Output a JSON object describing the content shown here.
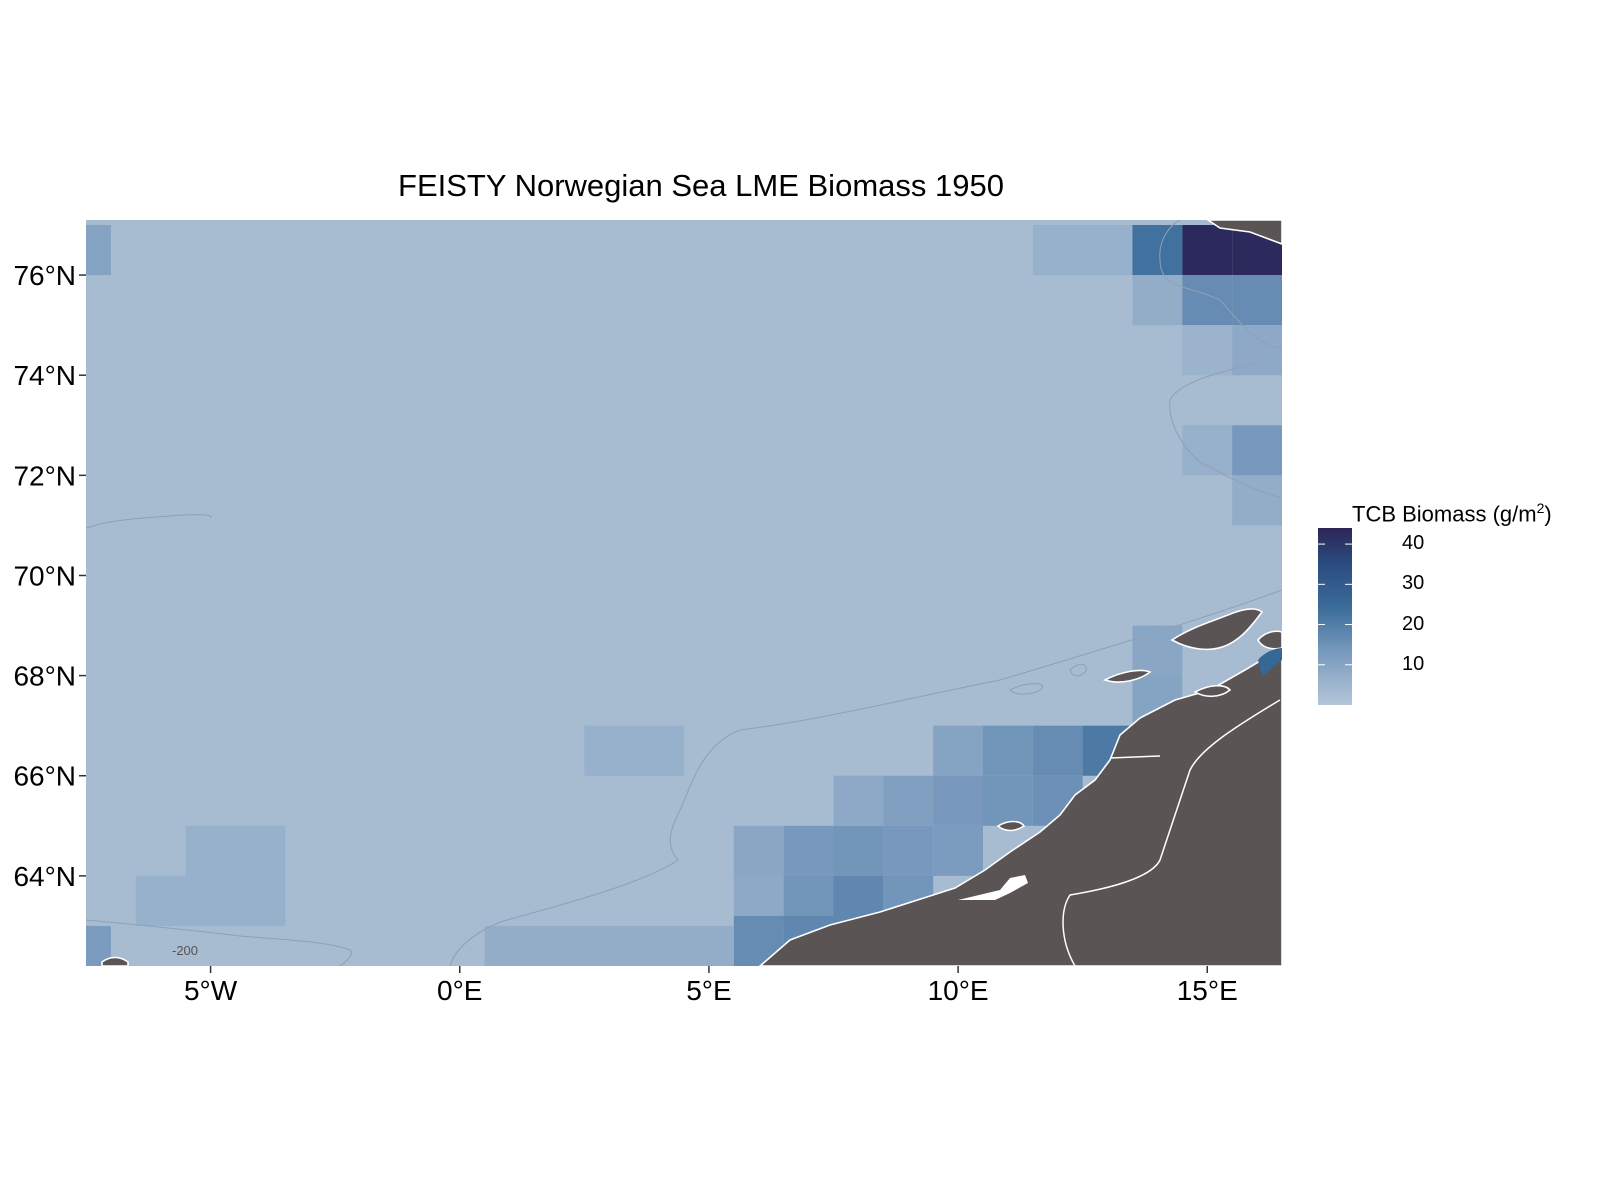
{
  "title": "FEISTY Norwegian Sea LME Biomass 1950",
  "legend": {
    "title_main": "TCB Biomass (g/m",
    "title_sup": "2",
    "title_end": ")",
    "ticks": [
      "40",
      "30",
      "20",
      "10"
    ],
    "tick_values": [
      40,
      30,
      20,
      10
    ],
    "range": [
      0,
      44
    ],
    "colors": [
      "#a9bdd3",
      "#7899bd",
      "#356897",
      "#2d3f77",
      "#2c2556"
    ]
  },
  "y_axis": {
    "ticks": [
      "76°N",
      "74°N",
      "72°N",
      "70°N",
      "68°N",
      "66°N",
      "64°N"
    ],
    "tick_values": [
      76,
      74,
      72,
      70,
      68,
      66,
      64
    ],
    "range": [
      62.2,
      77.1
    ]
  },
  "x_axis": {
    "ticks": [
      "5°W",
      "0°E",
      "5°E",
      "10°E",
      "15°E"
    ],
    "tick_values": [
      -5,
      0,
      5,
      10,
      15
    ],
    "range": [
      -7.5,
      16.5
    ]
  },
  "contour_label": "-200",
  "chart_data": {
    "type": "heatmap",
    "title": "FEISTY Norwegian Sea LME Biomass 1950",
    "xlabel": "",
    "ylabel": "",
    "value_label": "TCB Biomass (g/m2)",
    "background_value": 2,
    "cells": [
      {
        "lon": -7.5,
        "lat": 76.5,
        "value": 8
      },
      {
        "lon": 12,
        "lat": 76.5,
        "value": 4
      },
      {
        "lon": 13,
        "lat": 76.5,
        "value": 4
      },
      {
        "lon": 14,
        "lat": 76.5,
        "value": 20
      },
      {
        "lon": 15,
        "lat": 76.5,
        "value": 42
      },
      {
        "lon": 16,
        "lat": 76.5,
        "value": 42
      },
      {
        "lon": 14,
        "lat": 75.5,
        "value": 5
      },
      {
        "lon": 15,
        "lat": 75.5,
        "value": 14
      },
      {
        "lon": 16,
        "lat": 75.5,
        "value": 14
      },
      {
        "lon": 15,
        "lat": 74.5,
        "value": 3
      },
      {
        "lon": 16,
        "lat": 74.5,
        "value": 6
      },
      {
        "lon": 15,
        "lat": 72.5,
        "value": 4
      },
      {
        "lon": 16,
        "lat": 72.5,
        "value": 11
      },
      {
        "lon": 16,
        "lat": 71.5,
        "value": 5
      },
      {
        "lon": 14,
        "lat": 68.5,
        "value": 7
      },
      {
        "lon": 14,
        "lat": 67.5,
        "value": 8
      },
      {
        "lon": 10,
        "lat": 66.5,
        "value": 8
      },
      {
        "lon": 11,
        "lat": 66.5,
        "value": 12
      },
      {
        "lon": 12,
        "lat": 66.5,
        "value": 14
      },
      {
        "lon": 13,
        "lat": 66.5,
        "value": 18
      },
      {
        "lon": 3,
        "lat": 66.5,
        "value": 4
      },
      {
        "lon": 4,
        "lat": 66.5,
        "value": 4
      },
      {
        "lon": 8,
        "lat": 65.5,
        "value": 6
      },
      {
        "lon": 9,
        "lat": 65.5,
        "value": 9
      },
      {
        "lon": 10,
        "lat": 65.5,
        "value": 11
      },
      {
        "lon": 11,
        "lat": 65.5,
        "value": 12
      },
      {
        "lon": 12,
        "lat": 65.5,
        "value": 13
      },
      {
        "lon": 6,
        "lat": 64.5,
        "value": 7
      },
      {
        "lon": 7,
        "lat": 64.5,
        "value": 11
      },
      {
        "lon": 8,
        "lat": 64.5,
        "value": 12
      },
      {
        "lon": 9,
        "lat": 64.5,
        "value": 11
      },
      {
        "lon": 10,
        "lat": 64.5,
        "value": 10
      },
      {
        "lon": -5,
        "lat": 64.5,
        "value": 4
      },
      {
        "lon": -4,
        "lat": 64.5,
        "value": 4
      },
      {
        "lon": -6,
        "lat": 63.5,
        "value": 4
      },
      {
        "lon": -5,
        "lat": 63.5,
        "value": 4
      },
      {
        "lon": -4,
        "lat": 63.5,
        "value": 4
      },
      {
        "lon": 6,
        "lat": 63.5,
        "value": 6
      },
      {
        "lon": 7,
        "lat": 63.5,
        "value": 12
      },
      {
        "lon": 8,
        "lat": 63.5,
        "value": 15
      },
      {
        "lon": 9,
        "lat": 63.5,
        "value": 12
      },
      {
        "lon": 6,
        "lat": 62.7,
        "value": 14
      },
      {
        "lon": 7,
        "lat": 62.7,
        "value": 15
      },
      {
        "lon": 1,
        "lat": 62.5,
        "value": 5
      },
      {
        "lon": 2,
        "lat": 62.5,
        "value": 5
      },
      {
        "lon": 3,
        "lat": 62.5,
        "value": 5
      },
      {
        "lon": 4,
        "lat": 62.5,
        "value": 5
      },
      {
        "lon": 5,
        "lat": 62.5,
        "value": 5
      },
      {
        "lon": -7.5,
        "lat": 62.5,
        "value": 10
      }
    ]
  }
}
